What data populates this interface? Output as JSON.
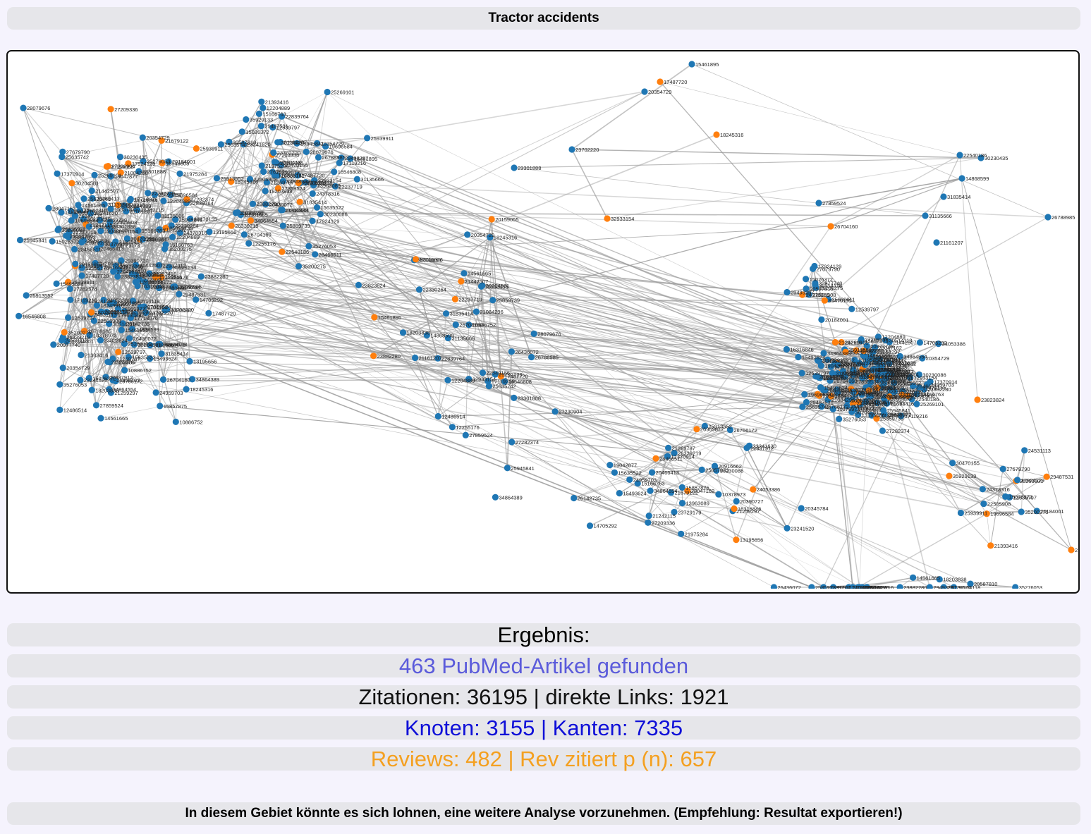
{
  "title": "Tractor accidents",
  "colors": {
    "article_node": "#1f77b4",
    "review_node": "#ff7f0e",
    "edge": "#9a9a9a",
    "articles_text": "#5b5bdb",
    "citations_text": "#111111",
    "nodes_text": "#1010d8",
    "reviews_text": "#f4a020"
  },
  "graph": {
    "node_labels": [
      "27209336",
      "25857073",
      "15166763",
      "21269787",
      "35929133",
      "21393416",
      "19696584",
      "24531113",
      "29487531",
      "25269101",
      "35200275",
      "17924129",
      "15026372",
      "22505908",
      "25939911",
      "12539797",
      "27679790",
      "30470155",
      "24378316",
      "20184001",
      "30514118",
      "29493297",
      "20587810",
      "20977740",
      "22839764",
      "25945841",
      "12486514",
      "22237719",
      "18203838",
      "26436072",
      "28079676",
      "25859739",
      "12255176",
      "17119216",
      "14561665",
      "21084296",
      "35276053",
      "23882280",
      "15461895",
      "17487720",
      "20354729",
      "18245316",
      "23702220",
      "23301888",
      "22540186",
      "30230435",
      "31135666",
      "32933154",
      "31835414",
      "14868599",
      "21161207",
      "27859524",
      "26704160",
      "26788985",
      "23823824",
      "25635742",
      "16546808",
      "10886752",
      "12204889",
      "20159055",
      "30204581",
      "21442507",
      "22330264",
      "17718076",
      "23241520",
      "34864389",
      "20345784",
      "21679122",
      "24959703",
      "20390727",
      "23729179",
      "22937912",
      "26142735",
      "27230904",
      "17370914",
      "19042877",
      "20916662",
      "26766172",
      "10378973",
      "24053386",
      "26969877",
      "21259297",
      "15857875",
      "15493624",
      "28047162",
      "20466413",
      "27282374",
      "13195656",
      "21242115",
      "16316846",
      "34864554",
      "25913552",
      "21975284",
      "26339219",
      "14705292",
      "13963089",
      "28466511",
      "23241620",
      "30230086",
      "15635522"
    ],
    "review_count_hint": "orange"
  },
  "result": {
    "heading": "Ergebnis:",
    "articles": "463 PubMed-Artikel gefunden",
    "citations": "Zitationen: 36195 | direkte Links: 1921",
    "nodes_edges": "Knoten: 3155 | Kanten: 7335",
    "reviews": "Reviews: 482 | Rev zitiert p (n): 657"
  },
  "recommendation": "In diesem Gebiet könnte es sich lohnen, eine weitere Analyse vorzunehmen. (Empfehlung: Resultat exportieren!)"
}
